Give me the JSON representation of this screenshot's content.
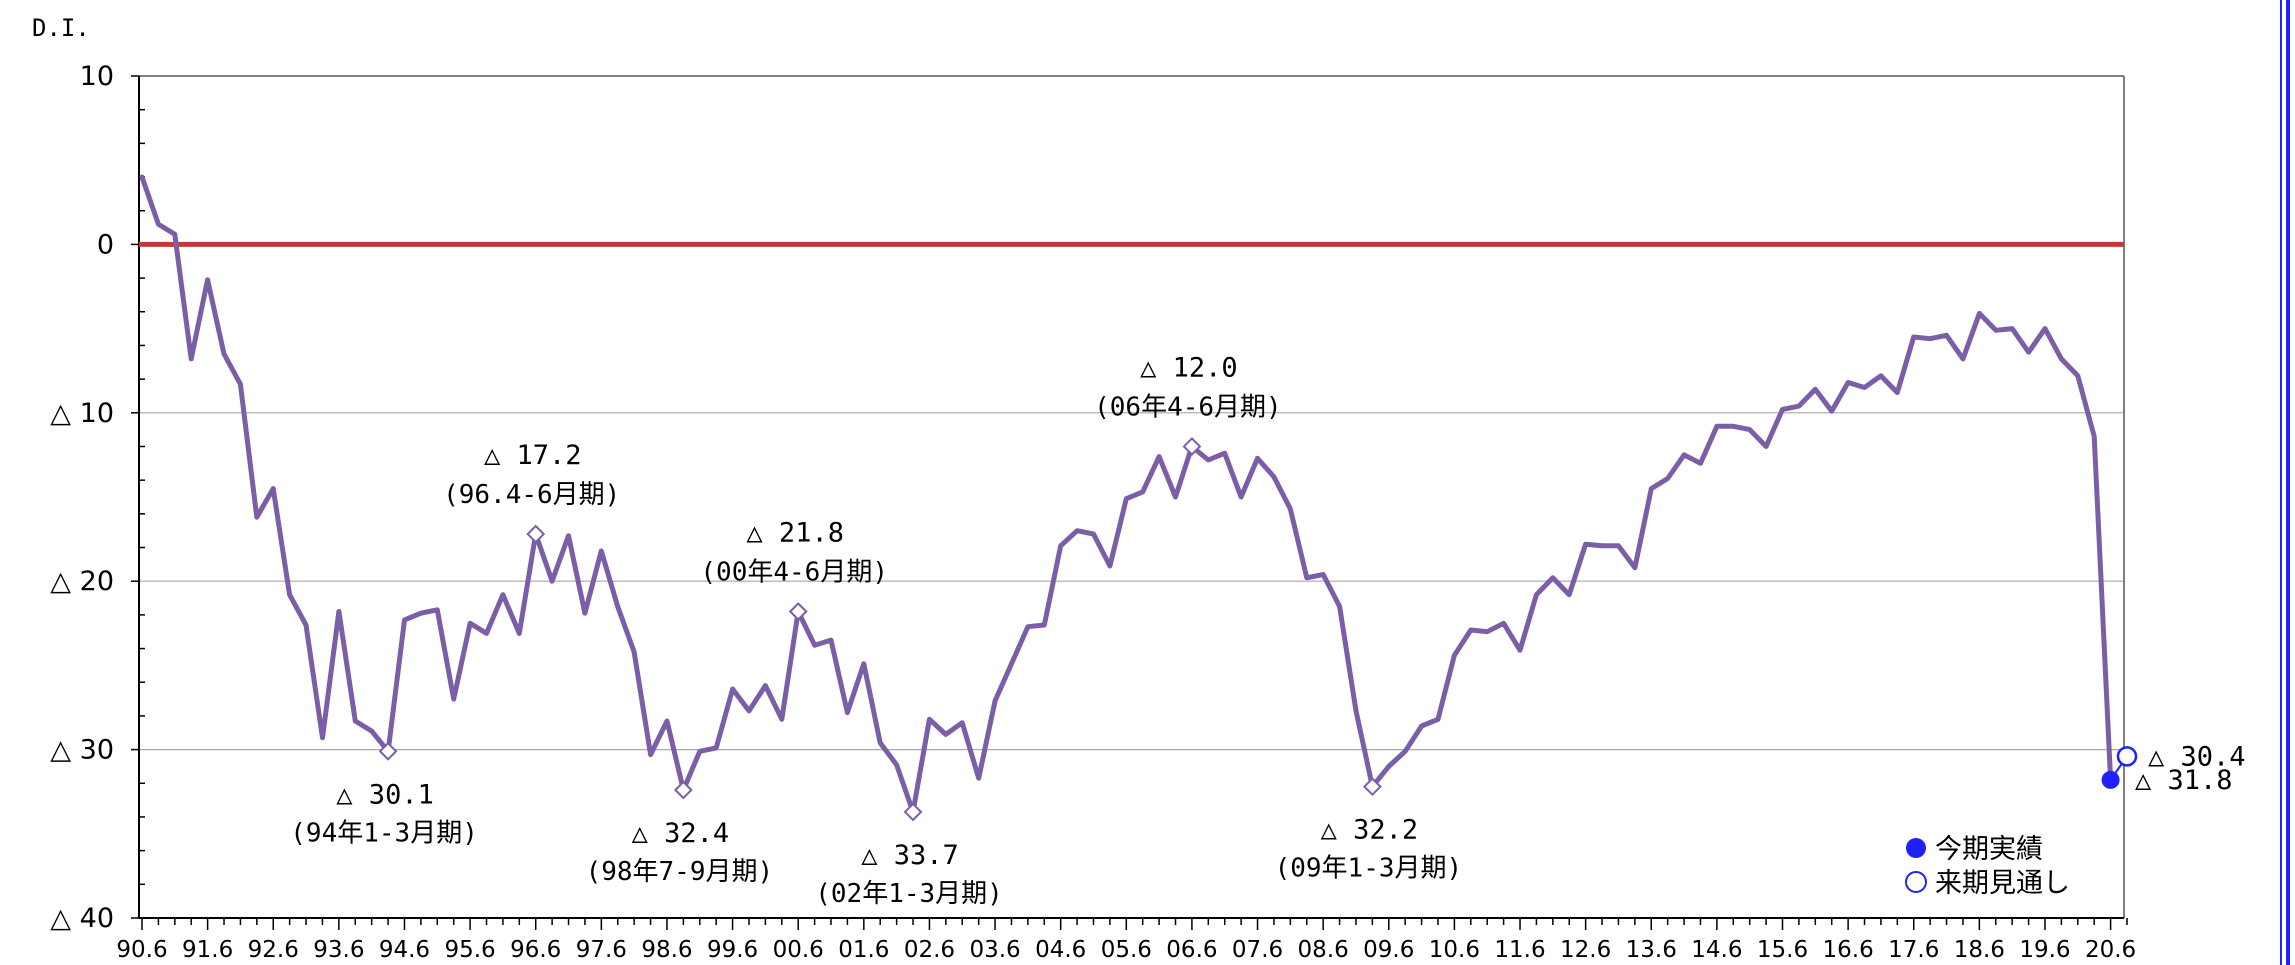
{
  "chart_data": {
    "type": "line",
    "ylabel": "D.I.",
    "ylim": [
      -40,
      10
    ],
    "yticks": [
      {
        "value": 10,
        "label": "10"
      },
      {
        "value": 0,
        "label": "0"
      },
      {
        "value": -10,
        "label": "△ 10"
      },
      {
        "value": -20,
        "label": "△ 20"
      },
      {
        "value": -30,
        "label": "△ 30"
      },
      {
        "value": -40,
        "label": "△ 40"
      }
    ],
    "xticks": [
      "90.6",
      "91.6",
      "92.6",
      "93.6",
      "94.6",
      "95.6",
      "96.6",
      "97.6",
      "98.6",
      "99.6",
      "00.6",
      "01.6",
      "02.6",
      "03.6",
      "04.6",
      "05.6",
      "06.6",
      "07.6",
      "08.6",
      "09.6",
      "10.6",
      "11.6",
      "12.6",
      "13.6",
      "14.6",
      "15.6",
      "16.6",
      "17.6",
      "18.6",
      "19.6",
      "20.6"
    ],
    "reference_line": {
      "value": 0,
      "color": "#c0393b"
    },
    "grid": true,
    "series": [
      {
        "color": "#7b5ea7",
        "x_start": "90.6",
        "step": "quarter",
        "values": [
          4.0,
          1.2,
          0.6,
          -6.8,
          -2.1,
          -6.5,
          -8.3,
          -16.2,
          -14.5,
          -20.8,
          -22.6,
          -29.3,
          -21.8,
          -28.3,
          -28.9,
          -30.1,
          -22.3,
          -21.9,
          -21.7,
          -27.0,
          -22.5,
          -23.1,
          -20.8,
          -23.1,
          -17.2,
          -20.0,
          -17.3,
          -21.9,
          -18.2,
          -21.5,
          -24.2,
          -30.3,
          -28.3,
          -32.4,
          -30.1,
          -29.9,
          -26.4,
          -27.7,
          -26.2,
          -28.2,
          -21.8,
          -23.8,
          -23.5,
          -27.8,
          -24.9,
          -29.6,
          -30.9,
          -33.7,
          -28.2,
          -29.1,
          -28.4,
          -31.7,
          -27.1,
          -24.9,
          -22.7,
          -22.6,
          -17.9,
          -17.0,
          -17.2,
          -19.1,
          -15.1,
          -14.7,
          -12.6,
          -15.0,
          -12.0,
          -12.8,
          -12.4,
          -15.0,
          -12.7,
          -13.8,
          -15.7,
          -19.8,
          -19.6,
          -21.5,
          -27.7,
          -32.2,
          -31.0,
          -30.1,
          -28.6,
          -28.2,
          -24.4,
          -22.9,
          -23.0,
          -22.5,
          -24.1,
          -20.8,
          -19.8,
          -20.8,
          -17.8,
          -17.9,
          -17.9,
          -19.2,
          -14.5,
          -13.9,
          -12.5,
          -13.0,
          -10.8,
          -10.8,
          -11.0,
          -12.0,
          -9.8,
          -9.6,
          -8.6,
          -9.9,
          -8.2,
          -8.5,
          -7.8,
          -8.8,
          -5.5,
          -5.6,
          -5.4,
          -6.8,
          -4.1,
          -5.1,
          -5.0,
          -6.4,
          -5.0,
          -6.8,
          -7.8,
          -11.4,
          -31.8
        ]
      }
    ],
    "peaks": [
      {
        "index": 15,
        "value_label": "△ 30.1",
        "period": "(94年1-3月期)",
        "position": "below"
      },
      {
        "index": 24,
        "value_label": "△ 17.2",
        "period": "(96.4-6月期)",
        "position": "above"
      },
      {
        "index": 33,
        "value_label": "△ 32.4",
        "period": "(98年7-9月期)",
        "position": "below"
      },
      {
        "index": 40,
        "value_label": "△ 21.8",
        "period": "(00年4-6月期)",
        "position": "above"
      },
      {
        "index": 47,
        "value_label": "△ 33.7",
        "period": "(02年1-3月期)",
        "position": "below"
      },
      {
        "index": 64,
        "value_label": "△ 12.0",
        "period": "(06年4-6月期)",
        "position": "above"
      },
      {
        "index": 75,
        "value_label": "△ 32.2",
        "period": "(09年1-3月期)",
        "position": "below"
      }
    ],
    "current": {
      "index": 120,
      "value": -31.8,
      "label": "△ 31.8",
      "color": "#1f1fff"
    },
    "forecast": {
      "index": 121,
      "value": -30.4,
      "label": "△ 30.4",
      "color": "#1f1fff"
    },
    "legend": {
      "placement": "bottom-right",
      "items": [
        {
          "label": "今期実績",
          "marker": "filled-circle"
        },
        {
          "label": "来期見通し",
          "marker": "open-circle"
        }
      ]
    }
  }
}
